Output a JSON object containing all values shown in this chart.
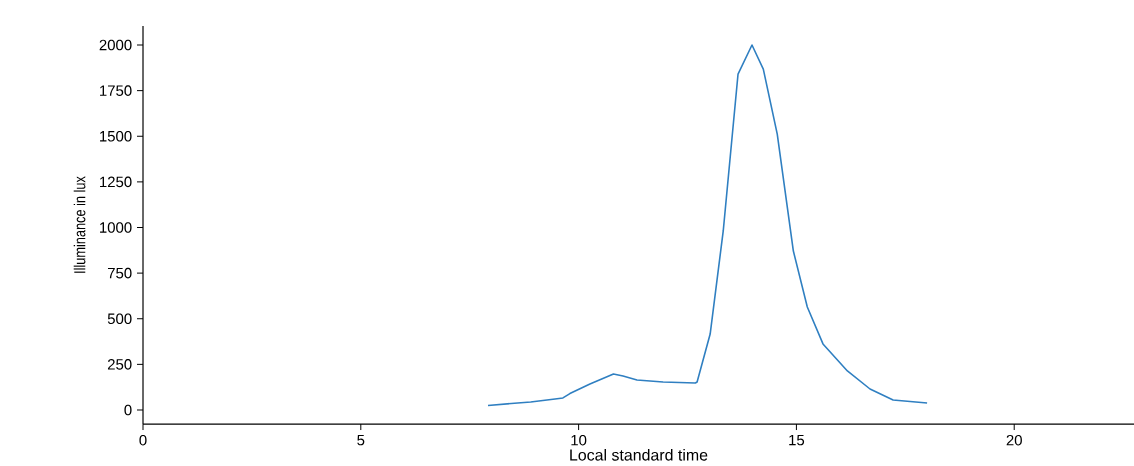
{
  "chart_data": {
    "type": "line",
    "xlabel": "Local standard time",
    "ylabel": "Illuminance in lux",
    "xlim": [
      0,
      22.75
    ],
    "ylim": [
      -77,
      2104
    ],
    "xticks": [
      0,
      5,
      10,
      15,
      20
    ],
    "yticks": [
      0,
      250,
      500,
      750,
      1000,
      1250,
      1500,
      1750,
      2000
    ],
    "grid": false,
    "series": [
      {
        "color": "#2f7fc1",
        "x": [
          7.92,
          8.9,
          9.46,
          9.64,
          9.8,
          10.26,
          10.8,
          11.02,
          11.34,
          11.94,
          12.68,
          12.72,
          13.02,
          13.32,
          13.66,
          13.98,
          14.24,
          14.56,
          14.93,
          15.25,
          15.61,
          16.17,
          16.69,
          17.22,
          18.0
        ],
        "values": [
          25,
          44,
          60,
          66,
          90,
          142,
          197,
          186,
          164,
          153,
          148,
          153,
          416,
          981,
          1841,
          2000,
          1868,
          1512,
          871,
          564,
          362,
          214,
          115,
          55,
          38
        ]
      }
    ]
  }
}
